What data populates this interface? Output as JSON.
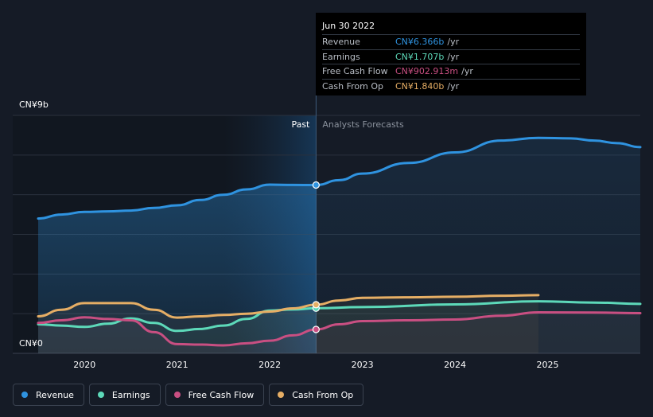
{
  "chart_data": {
    "type": "line",
    "x_ticks": [
      "2020",
      "2021",
      "2022",
      "2023",
      "2024",
      "2025"
    ],
    "y_ticks": [
      {
        "value": 9,
        "label": "CN¥9b"
      },
      {
        "value": 0,
        "label": "CN¥0"
      }
    ],
    "ylim": [
      0,
      9
    ],
    "y_unit": "CN¥ billions",
    "divider_label_past": "Past",
    "divider_label_forecast": "Analysts Forecasts",
    "divider_x": 2022.5,
    "grid": true,
    "legend_position": "bottom-left",
    "series": [
      {
        "name": "Revenue",
        "color": "#2f93e0",
        "fill": true,
        "points": [
          [
            2019.5,
            5.1
          ],
          [
            2019.75,
            5.25
          ],
          [
            2020.0,
            5.35
          ],
          [
            2020.25,
            5.37
          ],
          [
            2020.5,
            5.4
          ],
          [
            2020.75,
            5.5
          ],
          [
            2021.0,
            5.6
          ],
          [
            2021.25,
            5.8
          ],
          [
            2021.5,
            6.0
          ],
          [
            2021.75,
            6.2
          ],
          [
            2022.0,
            6.38
          ],
          [
            2022.25,
            6.37
          ],
          [
            2022.5,
            6.366
          ],
          [
            2022.75,
            6.55
          ],
          [
            2023.0,
            6.8
          ],
          [
            2023.5,
            7.2
          ],
          [
            2024.0,
            7.6
          ],
          [
            2024.5,
            8.05
          ],
          [
            2024.9,
            8.15
          ],
          [
            2025.25,
            8.13
          ],
          [
            2025.5,
            8.05
          ],
          [
            2025.75,
            7.95
          ],
          [
            2026.0,
            7.8
          ]
        ]
      },
      {
        "name": "Earnings",
        "color": "#5dd9b9",
        "fill": false,
        "points": [
          [
            2019.5,
            1.1
          ],
          [
            2019.75,
            1.05
          ],
          [
            2020.0,
            1.0
          ],
          [
            2020.25,
            1.12
          ],
          [
            2020.5,
            1.32
          ],
          [
            2020.75,
            1.15
          ],
          [
            2021.0,
            0.85
          ],
          [
            2021.25,
            0.92
          ],
          [
            2021.5,
            1.05
          ],
          [
            2021.75,
            1.3
          ],
          [
            2022.0,
            1.62
          ],
          [
            2022.25,
            1.66
          ],
          [
            2022.5,
            1.707
          ],
          [
            2023.0,
            1.75
          ],
          [
            2024.0,
            1.85
          ],
          [
            2024.9,
            1.97
          ],
          [
            2025.5,
            1.92
          ],
          [
            2026.0,
            1.87
          ]
        ]
      },
      {
        "name": "Free Cash Flow",
        "color": "#c94f82",
        "fill": false,
        "points": [
          [
            2019.5,
            1.15
          ],
          [
            2019.75,
            1.25
          ],
          [
            2020.0,
            1.36
          ],
          [
            2020.25,
            1.3
          ],
          [
            2020.5,
            1.25
          ],
          [
            2020.75,
            0.8
          ],
          [
            2021.0,
            0.35
          ],
          [
            2021.25,
            0.33
          ],
          [
            2021.5,
            0.3
          ],
          [
            2021.75,
            0.38
          ],
          [
            2022.0,
            0.48
          ],
          [
            2022.25,
            0.68
          ],
          [
            2022.5,
            0.903
          ],
          [
            2022.75,
            1.1
          ],
          [
            2023.0,
            1.22
          ],
          [
            2023.5,
            1.25
          ],
          [
            2024.0,
            1.28
          ],
          [
            2024.5,
            1.42
          ],
          [
            2024.9,
            1.55
          ],
          [
            2025.5,
            1.54
          ],
          [
            2026.0,
            1.52
          ]
        ]
      },
      {
        "name": "Cash From Op",
        "color": "#e6ae65",
        "fill": false,
        "points": [
          [
            2019.5,
            1.4
          ],
          [
            2019.75,
            1.65
          ],
          [
            2020.0,
            1.9
          ],
          [
            2020.25,
            1.9
          ],
          [
            2020.5,
            1.9
          ],
          [
            2020.75,
            1.65
          ],
          [
            2021.0,
            1.35
          ],
          [
            2021.25,
            1.4
          ],
          [
            2021.5,
            1.45
          ],
          [
            2021.75,
            1.5
          ],
          [
            2022.0,
            1.58
          ],
          [
            2022.25,
            1.7
          ],
          [
            2022.5,
            1.84
          ],
          [
            2022.75,
            2.0
          ],
          [
            2023.0,
            2.1
          ],
          [
            2023.5,
            2.12
          ],
          [
            2024.0,
            2.14
          ],
          [
            2024.5,
            2.18
          ],
          [
            2024.9,
            2.2
          ]
        ]
      }
    ]
  },
  "tooltip": {
    "date": "Jun 30 2022",
    "rows": [
      {
        "label": "Revenue",
        "value": "CN¥6.366b",
        "unit": "/yr",
        "color": "#2f93e0"
      },
      {
        "label": "Earnings",
        "value": "CN¥1.707b",
        "unit": "/yr",
        "color": "#5dd9b9"
      },
      {
        "label": "Free Cash Flow",
        "value": "CN¥902.913m",
        "unit": "/yr",
        "color": "#c94f82"
      },
      {
        "label": "Cash From Op",
        "value": "CN¥1.840b",
        "unit": "/yr",
        "color": "#e6ae65"
      }
    ]
  },
  "legend": [
    {
      "label": "Revenue",
      "color": "#2f93e0"
    },
    {
      "label": "Earnings",
      "color": "#5dd9b9"
    },
    {
      "label": "Free Cash Flow",
      "color": "#c94f82"
    },
    {
      "label": "Cash From Op",
      "color": "#e6ae65"
    }
  ]
}
